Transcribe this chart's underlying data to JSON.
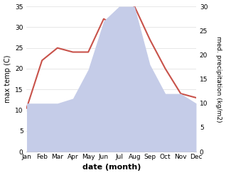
{
  "months": [
    "Jan",
    "Feb",
    "Mar",
    "Apr",
    "May",
    "Jun",
    "Jul",
    "Aug",
    "Sep",
    "Oct",
    "Nov",
    "Dec"
  ],
  "temperature": [
    10.5,
    22,
    25,
    24,
    24,
    32,
    30,
    35,
    27,
    20,
    14,
    13
  ],
  "precipitation": [
    10,
    10,
    10,
    11,
    17,
    27,
    30,
    30,
    18,
    12,
    12,
    10
  ],
  "temp_color": "#c8524a",
  "precip_fill_color": "#c5cce8",
  "precip_edge_color": "#c5cce8",
  "ylabel_left": "max temp (C)",
  "ylabel_right": "med. precipitation (kg/m2)",
  "xlabel": "date (month)",
  "ylim_left": [
    0,
    35
  ],
  "ylim_right": [
    0,
    30
  ],
  "yticks_left": [
    0,
    5,
    10,
    15,
    20,
    25,
    30,
    35
  ],
  "yticks_right": [
    0,
    5,
    10,
    15,
    20,
    25,
    30
  ],
  "grid_color": "#dddddd"
}
